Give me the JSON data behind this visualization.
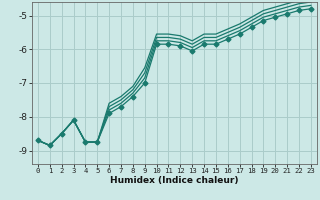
{
  "xlabel": "Humidex (Indice chaleur)",
  "ylabel": "",
  "bg_color": "#cce8e6",
  "grid_color": "#aaccca",
  "line_color": "#1a7a6e",
  "xlim": [
    -0.5,
    23.5
  ],
  "ylim": [
    -9.4,
    -4.6
  ],
  "yticks": [
    -9,
    -8,
    -7,
    -6,
    -5
  ],
  "xticks": [
    0,
    1,
    2,
    3,
    4,
    5,
    6,
    7,
    8,
    9,
    10,
    11,
    12,
    13,
    14,
    15,
    16,
    17,
    18,
    19,
    20,
    21,
    22,
    23
  ],
  "series": [
    {
      "x": [
        0,
        1,
        2,
        3,
        4,
        5,
        6,
        7,
        8,
        9,
        10,
        11,
        12,
        13,
        14,
        15,
        16,
        17,
        18,
        19,
        20,
        21,
        22,
        23
      ],
      "y": [
        -8.7,
        -8.85,
        -8.5,
        -8.1,
        -8.75,
        -8.75,
        -7.9,
        -7.7,
        -7.4,
        -7.0,
        -5.85,
        -5.85,
        -5.9,
        -6.05,
        -5.85,
        -5.85,
        -5.7,
        -5.55,
        -5.35,
        -5.15,
        -5.05,
        -4.95,
        -4.85,
        -4.8
      ],
      "marker": "D",
      "ms": 2.5
    },
    {
      "x": [
        0,
        1,
        2,
        3,
        4,
        5,
        6,
        7,
        8,
        9,
        10,
        11,
        12,
        13,
        14,
        15,
        16,
        17,
        18,
        19,
        20,
        21,
        22,
        23
      ],
      "y": [
        -8.7,
        -8.85,
        -8.5,
        -8.1,
        -8.75,
        -8.75,
        -7.8,
        -7.6,
        -7.3,
        -6.85,
        -5.75,
        -5.75,
        -5.8,
        -5.95,
        -5.75,
        -5.75,
        -5.6,
        -5.45,
        -5.25,
        -5.05,
        -4.95,
        -4.85,
        -4.75,
        -4.7
      ],
      "marker": null,
      "ms": 0
    },
    {
      "x": [
        0,
        1,
        2,
        3,
        4,
        5,
        6,
        7,
        8,
        9,
        10,
        11,
        12,
        13,
        14,
        15,
        16,
        17,
        18,
        19,
        20,
        21,
        22,
        23
      ],
      "y": [
        -8.7,
        -8.85,
        -8.5,
        -8.1,
        -8.75,
        -8.75,
        -7.7,
        -7.5,
        -7.2,
        -6.7,
        -5.65,
        -5.65,
        -5.7,
        -5.85,
        -5.65,
        -5.65,
        -5.5,
        -5.35,
        -5.15,
        -4.95,
        -4.85,
        -4.75,
        -4.65,
        -4.6
      ],
      "marker": null,
      "ms": 0
    },
    {
      "x": [
        0,
        1,
        2,
        3,
        4,
        5,
        6,
        7,
        8,
        9,
        10,
        11,
        12,
        13,
        14,
        15,
        16,
        17,
        18,
        19,
        20,
        21,
        22,
        23
      ],
      "y": [
        -8.7,
        -8.85,
        -8.5,
        -8.1,
        -8.75,
        -8.75,
        -7.6,
        -7.4,
        -7.1,
        -6.55,
        -5.55,
        -5.55,
        -5.6,
        -5.75,
        -5.55,
        -5.55,
        -5.4,
        -5.25,
        -5.05,
        -4.85,
        -4.75,
        -4.65,
        -4.55,
        -4.5
      ],
      "marker": null,
      "ms": 0
    }
  ]
}
